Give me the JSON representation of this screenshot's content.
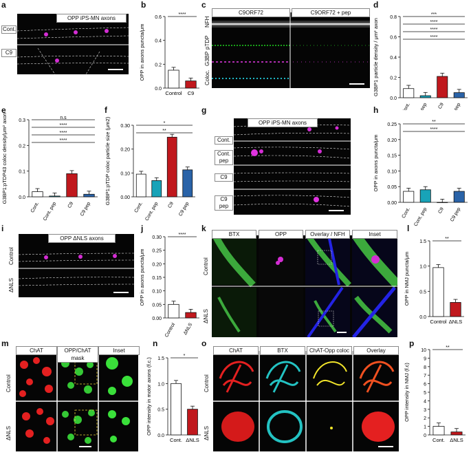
{
  "panel_letters": [
    "a",
    "b",
    "c",
    "d",
    "e",
    "f",
    "g",
    "h",
    "i",
    "j",
    "k",
    "l",
    "m",
    "n",
    "o",
    "p"
  ],
  "micrographs": {
    "a": {
      "title": "OPP iPS-MN axons",
      "rows": [
        "Cont.",
        "C9"
      ]
    },
    "c": {
      "cols": [
        "C9ORF72",
        "C9ORF72 + pep"
      ],
      "rows": [
        "NFH",
        "pTDP",
        "G3BP",
        "Coloc."
      ]
    },
    "g": {
      "title": "OPP iPS-MN axons",
      "rows": [
        "Cont.",
        "Cont. pep",
        "C9",
        "C9 pep"
      ]
    },
    "i": {
      "title": "OPP ΔNLS axons",
      "rows": [
        "Control",
        "ΔNLS"
      ]
    },
    "k": {
      "cols": [
        "BTX",
        "OPP",
        "Overlay / NFH",
        "Inset"
      ],
      "rows": [
        "Control",
        "ΔNLS"
      ]
    },
    "m": {
      "cols": [
        "ChAT",
        "OPP/ChAT mask",
        "Inset"
      ],
      "rows": [
        "Control",
        "ΔNLS"
      ]
    },
    "o": {
      "cols": [
        "ChAT",
        "BTX",
        "ChAT-Opp coloc",
        "Overlay"
      ],
      "rows": [
        "Control",
        "ΔNLS"
      ]
    }
  },
  "colors": {
    "red": "#c0181d",
    "blue": "#2a63a8",
    "teal": "#18a3b8",
    "white": "#ffffff"
  },
  "chart_data": [
    {
      "panel": "b",
      "type": "bar",
      "ylabel": "OPP  in axons puncta/μm",
      "ylim": [
        0,
        0.6
      ],
      "yticks": [
        "0.0",
        "0.2",
        "0.4",
        "0.6"
      ],
      "categories": [
        "Control",
        "C9"
      ],
      "values": [
        0.15,
        0.06
      ],
      "significance": [
        "****"
      ]
    },
    {
      "panel": "d",
      "type": "bar",
      "ylabel": "G3BP1 particle density / μm² axon",
      "ylim": [
        0,
        0.8
      ],
      "yticks": [
        "0.0",
        "0.2",
        "0.4",
        "0.6",
        "0.8"
      ],
      "categories": [
        "Cont.",
        "Cont. pep",
        "C9",
        "C9 pep"
      ],
      "values": [
        0.09,
        0.02,
        0.21,
        0.05
      ],
      "significance": [
        "***",
        "****",
        "****",
        "****"
      ]
    },
    {
      "panel": "e",
      "type": "bar",
      "ylabel": "G3BP1:pTDP43 coloc density/μm² axon",
      "ylim": [
        0,
        0.3
      ],
      "yticks": [
        "0.0",
        "0.1",
        "0.2",
        "0.3"
      ],
      "categories": [
        "Cont.",
        "Cont. pep",
        "C9",
        "C9 pep"
      ],
      "values": [
        0.02,
        0.003,
        0.09,
        0.01
      ],
      "significance": [
        "n.s",
        "****",
        "****",
        "****"
      ]
    },
    {
      "panel": "f",
      "type": "bar",
      "ylabel": "G3BP1:pTDP coloc particle size (μm2)",
      "ylim": [
        0,
        0.3
      ],
      "yticks": [
        "0.00",
        "0.10",
        "0.20",
        "0.30"
      ],
      "categories": [
        "Cont.",
        "Cont. pep",
        "C9",
        "C9 pep"
      ],
      "values": [
        0.095,
        0.068,
        0.25,
        0.113
      ],
      "significance": [
        "*",
        "**"
      ]
    },
    {
      "panel": "h",
      "type": "bar",
      "ylabel": "OPP in axons puncta/μm",
      "ylim": [
        0,
        0.25
      ],
      "yticks": [
        "0.00",
        "0.05",
        "0.10",
        "0.15",
        "0.20",
        "0.25"
      ],
      "categories": [
        "Cont.",
        "Cont. pep",
        "C9",
        "C9 pep"
      ],
      "values": [
        0.035,
        0.04,
        0.0,
        0.035
      ],
      "significance": [
        "**",
        "****"
      ]
    },
    {
      "panel": "j",
      "type": "bar",
      "ylabel": "OPP in axons puncta/μm",
      "ylim": [
        0,
        0.3
      ],
      "yticks": [
        "0.00",
        "0.05",
        "0.10",
        "0.15",
        "0.20",
        "0.25",
        "0.30"
      ],
      "categories": [
        "Control",
        "ΔNLS"
      ],
      "values": [
        0.05,
        0.02
      ],
      "significance": [
        "****"
      ]
    },
    {
      "panel": "l",
      "type": "bar",
      "ylabel": "OPP in NMJ puncta/μm",
      "ylim": [
        0,
        1.5
      ],
      "yticks": [
        "0.0",
        "0.5",
        "1.0",
        "1.5"
      ],
      "categories": [
        "Control",
        "ΔNLS"
      ],
      "values": [
        0.97,
        0.28
      ],
      "significance": [
        "**"
      ]
    },
    {
      "panel": "n",
      "type": "bar",
      "ylabel": "OPP intensity in motor axons (f.c.)",
      "ylim": [
        0,
        1.5
      ],
      "yticks": [
        "0.0",
        "0.5",
        "1.0",
        "1.5"
      ],
      "categories": [
        "Cont.",
        "ΔNLS"
      ],
      "values": [
        1.0,
        0.5
      ],
      "significance": [
        "*"
      ]
    },
    {
      "panel": "p",
      "type": "bar",
      "ylabel": "OPP intensity in NMJ (f.c)",
      "ylim": [
        0,
        10
      ],
      "yticks": [
        "0",
        "1",
        "2",
        "3",
        "4",
        "5",
        "6",
        "7",
        "8",
        "9",
        "10"
      ],
      "categories": [
        "Cont.",
        "ΔNLS"
      ],
      "values": [
        1.0,
        0.35
      ],
      "significance": [
        "**"
      ]
    }
  ]
}
